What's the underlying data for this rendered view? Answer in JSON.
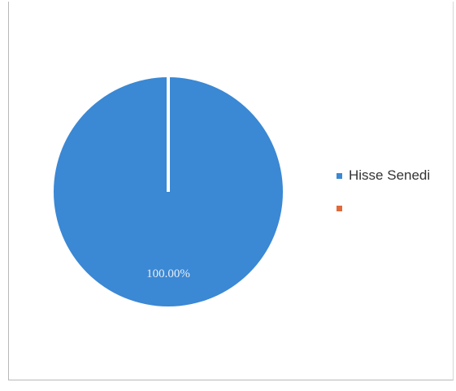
{
  "chart_data": {
    "type": "pie",
    "title": "",
    "slices": [
      {
        "label": "Hisse Senedi",
        "value": 100.0,
        "display": "100.00%",
        "color": "#3b88d4"
      },
      {
        "label": "",
        "value": 0.0,
        "display": "",
        "color": "#e06a3a"
      }
    ],
    "legend_position": "right"
  }
}
